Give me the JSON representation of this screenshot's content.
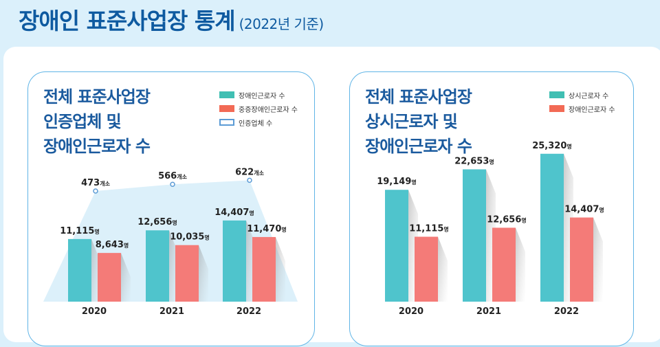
{
  "page": {
    "title": "장애인 표준사업장 통계",
    "subtitle": "(2022년 기준)"
  },
  "colors": {
    "teal": "#4fc4cc",
    "red": "#f47b78",
    "legend_teal": "#40bfb3",
    "legend_red": "#f26a55",
    "outline": "#5b9bd5",
    "title_blue": "#1a5a9e"
  },
  "chart_data": [
    {
      "type": "bar",
      "title_lines": [
        "전체 표준사업장",
        "인증업체 및",
        "장애인근로자 수"
      ],
      "categories": [
        "2020",
        "2021",
        "2022"
      ],
      "series": [
        {
          "name": "장애인근로자 수",
          "values": [
            11115,
            12656,
            14407
          ],
          "labels": [
            "11,115",
            "12,656",
            "14,407"
          ],
          "unit": "명"
        },
        {
          "name": "중증장애인근로자 수",
          "values": [
            8643,
            10035,
            11470
          ],
          "labels": [
            "8,643",
            "10,035",
            "11,470"
          ],
          "unit": "명"
        },
        {
          "name": "인증업체 수",
          "type": "area",
          "values": [
            473,
            566,
            622
          ],
          "labels": [
            "473",
            "566",
            "622"
          ],
          "unit": "개소"
        }
      ],
      "legend": "top-right",
      "grid": false
    },
    {
      "type": "bar",
      "title_lines": [
        "전체 표준사업장",
        "상시근로자 및",
        "장애인근로자 수"
      ],
      "categories": [
        "2020",
        "2021",
        "2022"
      ],
      "series": [
        {
          "name": "상시근로자 수",
          "values": [
            19149,
            22653,
            25320
          ],
          "labels": [
            "19,149",
            "22,653",
            "25,320"
          ],
          "unit": "명"
        },
        {
          "name": "장애인근로자 수",
          "values": [
            11115,
            12656,
            14407
          ],
          "labels": [
            "11,115",
            "12,656",
            "14,407"
          ],
          "unit": "명"
        }
      ],
      "legend": "top-right",
      "grid": false
    }
  ]
}
